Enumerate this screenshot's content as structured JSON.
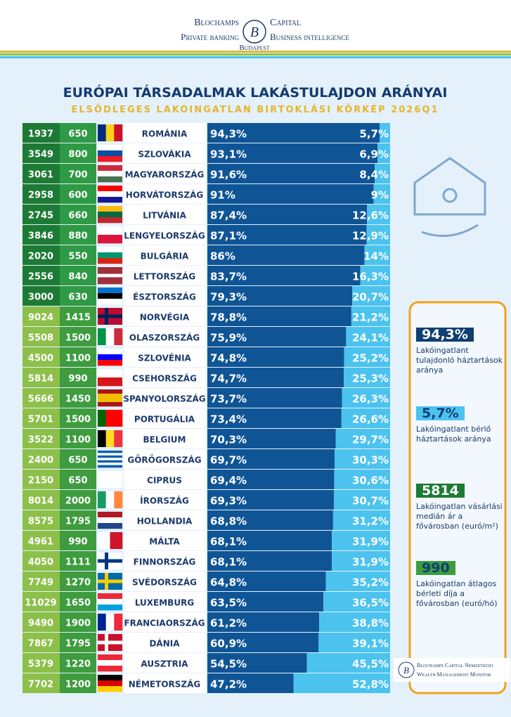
{
  "header": {
    "brand_left": "Blochamps",
    "brand_right": "Capital",
    "line_left": "Private banking",
    "line_right": "Business intelligence",
    "city": "Budapest",
    "logo": "B"
  },
  "chart_data": {
    "type": "bar",
    "title": "EURÓPAI TÁRSADALMAK LAKÁSTULAJDON ARÁNYAI",
    "subtitle": "ELSŐDLEGES LAKÓINGATLAN BIRTOKLÁSI KÖRKÉP 2026Q1",
    "categories": [
      "ROMÁNIA",
      "SZLOVÁKIA",
      "MAGYARORSZÁG",
      "HORVÁTORSZÁG",
      "LITVÁNIA",
      "LENGYELORSZÁG",
      "BULGÁRIA",
      "LETTORSZÁG",
      "ÉSZTORSZÁG",
      "NORVÉGIA",
      "OLASZORSZÁG",
      "SZLOVÉNIA",
      "CSEHORSZÁG",
      "SPANYOLORSZÁG",
      "PORTUGÁLIA",
      "BELGIUM",
      "GÖRÖGORSZÁG",
      "CIPRUS",
      "ÍRORSZÁG",
      "HOLLANDIA",
      "MÁLTA",
      "FINNORSZÁG",
      "SVÉDORSZÁG",
      "LUXEMBURG",
      "FRANCIAORSZÁG",
      "DÁNIA",
      "AUSZTRIA",
      "NÉMETORSZÁG"
    ],
    "stacked": true,
    "series": [
      {
        "name": "Lakóingatlant tulajdonló háztartások aránya",
        "color": "#0f5596",
        "values": [
          94.3,
          93.1,
          91.6,
          91,
          87.4,
          87.1,
          86,
          83.7,
          79.3,
          78.8,
          75.9,
          74.8,
          74.7,
          73.7,
          73.4,
          70.3,
          69.7,
          69.4,
          69.3,
          68.8,
          68.1,
          68.1,
          64.8,
          63.5,
          61.2,
          60.9,
          54.5,
          47.2
        ],
        "value_labels": [
          "94,3%",
          "93,1%",
          "91,6%",
          "91%",
          "87,4%",
          "87,1%",
          "86%",
          "83,7%",
          "79,3%",
          "78,8%",
          "75,9%",
          "74,8%",
          "74,7%",
          "73,7%",
          "73,4%",
          "70,3%",
          "69,7%",
          "69,4%",
          "69,3%",
          "68,8%",
          "68,1%",
          "68,1%",
          "64,8%",
          "63,5%",
          "61,2%",
          "60,9%",
          "54,5%",
          "47,2%"
        ]
      },
      {
        "name": "Lakóingatlant bérlő háztartások aránya",
        "color": "#4cc3ef",
        "values": [
          5.7,
          6.9,
          8.4,
          9,
          12.6,
          12.9,
          14,
          16.3,
          20.7,
          21.2,
          24.1,
          25.2,
          25.3,
          26.3,
          26.6,
          29.7,
          30.3,
          30.6,
          30.7,
          31.2,
          31.9,
          31.9,
          35.2,
          36.5,
          38.8,
          39.1,
          45.5,
          52.8
        ],
        "value_labels": [
          "5,7%",
          "6,9%",
          "8,4%",
          "9%",
          "12,6%",
          "12,9%",
          "14%",
          "16,3%",
          "20,7%",
          "21,2%",
          "24,1%",
          "25,2%",
          "25,3%",
          "26,3%",
          "26,6%",
          "29,7%",
          "30,3%",
          "30,6%",
          "30,7%",
          "31,2%",
          "31,9%",
          "31,9%",
          "35,2%",
          "36,5%",
          "38,8%",
          "39,1%",
          "45,5%",
          "52,8%"
        ]
      }
    ],
    "columns": [
      {
        "name": "Lakóingatlan vásárlási medián ár a fővárosban (euró/m²)",
        "values": [
          1937,
          3549,
          3061,
          2958,
          2745,
          3846,
          2020,
          2556,
          3000,
          9024,
          5508,
          4500,
          5814,
          5666,
          5701,
          3522,
          2400,
          2150,
          8014,
          8575,
          4961,
          4050,
          7749,
          11029,
          9490,
          7867,
          5379,
          7702
        ]
      },
      {
        "name": "Lakóingatlan átlagos bérleti díja a fővárosban (euró/hó)",
        "values": [
          650,
          800,
          700,
          600,
          660,
          880,
          550,
          840,
          630,
          1415,
          1500,
          1100,
          990,
          1450,
          1500,
          1100,
          650,
          650,
          2000,
          1795,
          990,
          1111,
          1270,
          1650,
          1900,
          1795,
          1220,
          1200
        ]
      }
    ],
    "legend_samples": [
      "94,3%",
      "5,7%",
      "5814",
      "990"
    ]
  },
  "footer": {
    "line1": "Blochamps Capital Nemzetközi",
    "line2": "Wealth Management Monitor"
  }
}
